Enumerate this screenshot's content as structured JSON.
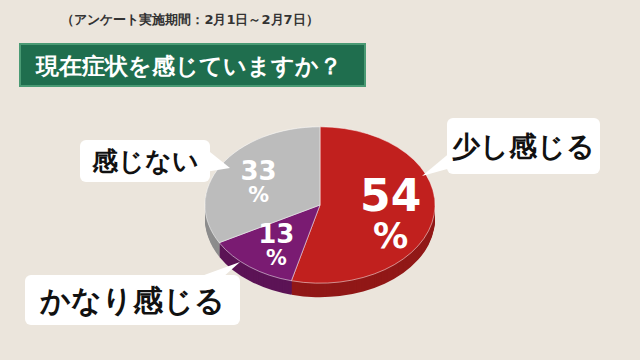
{
  "chart_data": {
    "type": "pie",
    "title": "現在症状を感じていますか？",
    "subtitle": "（アンケート実施期間：2月1日～2月7日）",
    "categories": [
      "少し感じる",
      "かなり感じる",
      "感じない"
    ],
    "values": [
      54,
      13,
      33
    ],
    "value_labels": [
      "54%",
      "13%",
      "33%"
    ],
    "colors": [
      "#c1201e",
      "#7a1b72",
      "#bcbcbc"
    ],
    "data_labels": true
  }
}
